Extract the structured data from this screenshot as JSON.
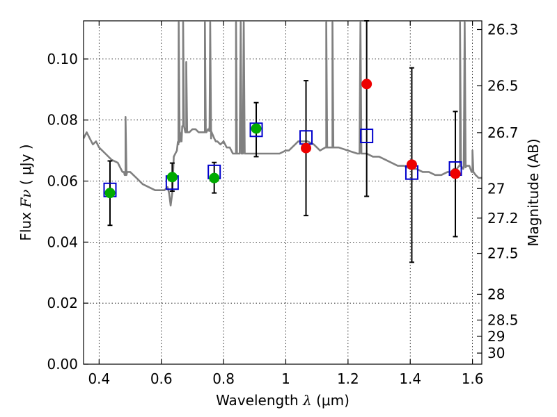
{
  "chart_data": {
    "type": "scatter",
    "xlabel_text": "Wavelength",
    "xlabel_symbol": "λ",
    "xlabel_unit": "(μm)",
    "ylabel_text": "Flux",
    "ylabel_symbol": "Fν",
    "ylabel_unit": "( μJy )",
    "y2label": "Magnitude (AB)",
    "xlim": [
      0.35,
      1.63
    ],
    "ylim": [
      0.0,
      0.1125
    ],
    "xticks": [
      0.4,
      0.6,
      0.8,
      1.0,
      1.2,
      1.4,
      1.6
    ],
    "xtick_labels": [
      "0.4",
      "0.6",
      "0.8",
      "1",
      "1.2",
      "1.4",
      "1.6"
    ],
    "yticks": [
      0.0,
      0.02,
      0.04,
      0.06,
      0.08,
      0.1
    ],
    "ytick_labels": [
      "0.00",
      "0.02",
      "0.04",
      "0.06",
      "0.08",
      "0.10"
    ],
    "y2ticks": [
      26.3,
      26.5,
      26.7,
      27,
      27.2,
      27.5,
      28,
      28.5,
      29,
      30
    ],
    "y2tick_labels": [
      "26.3",
      "26.5",
      "26.7",
      "27",
      "27.2",
      "27.5",
      "28",
      "28.5",
      "29",
      "30"
    ],
    "grid": true,
    "colors": {
      "template": "#808080",
      "model": "#0000cc",
      "detection": "#00aa00",
      "lowsn": "#ee0000",
      "errorbar": "#000000"
    },
    "template_spectrum": {
      "x": [
        0.35,
        0.36,
        0.37,
        0.38,
        0.39,
        0.4,
        0.42,
        0.44,
        0.46,
        0.47,
        0.475,
        0.48,
        0.485,
        0.49,
        0.5,
        0.52,
        0.54,
        0.56,
        0.58,
        0.6,
        0.61,
        0.62,
        0.625,
        0.63,
        0.635,
        0.64,
        0.645,
        0.65,
        0.655,
        0.66,
        0.665,
        0.67,
        0.68,
        0.69,
        0.7,
        0.71,
        0.72,
        0.73,
        0.74,
        0.745,
        0.75,
        0.755,
        0.76,
        0.77,
        0.775,
        0.78,
        0.79,
        0.8,
        0.81,
        0.82,
        0.83,
        0.835,
        0.84,
        0.845,
        0.85,
        0.86,
        0.87,
        0.88,
        0.9,
        0.92,
        0.94,
        0.96,
        0.98,
        1.0,
        1.01,
        1.02,
        1.03,
        1.04,
        1.05,
        1.07,
        1.09,
        1.1,
        1.11,
        1.13,
        1.15,
        1.17,
        1.2,
        1.23,
        1.26,
        1.28,
        1.3,
        1.32,
        1.34,
        1.36,
        1.38,
        1.4,
        1.42,
        1.44,
        1.46,
        1.48,
        1.5,
        1.52,
        1.53,
        1.54,
        1.55,
        1.56,
        1.57,
        1.58,
        1.59,
        1.6,
        1.61,
        1.62,
        1.63
      ],
      "y": [
        0.074,
        0.076,
        0.074,
        0.072,
        0.073,
        0.071,
        0.069,
        0.067,
        0.066,
        0.064,
        0.063,
        0.063,
        0.062,
        0.063,
        0.063,
        0.061,
        0.059,
        0.058,
        0.057,
        0.057,
        0.057,
        0.058,
        0.056,
        0.052,
        0.056,
        0.068,
        0.069,
        0.07,
        0.072,
        0.076,
        0.073,
        0.078,
        0.076,
        0.076,
        0.077,
        0.077,
        0.076,
        0.076,
        0.076,
        0.076,
        0.077,
        0.078,
        0.074,
        0.074,
        0.073,
        0.073,
        0.072,
        0.073,
        0.071,
        0.071,
        0.069,
        0.069,
        0.069,
        0.069,
        0.069,
        0.069,
        0.069,
        0.069,
        0.069,
        0.069,
        0.069,
        0.069,
        0.069,
        0.07,
        0.07,
        0.071,
        0.072,
        0.073,
        0.073,
        0.073,
        0.072,
        0.071,
        0.07,
        0.071,
        0.071,
        0.071,
        0.07,
        0.069,
        0.069,
        0.068,
        0.068,
        0.067,
        0.066,
        0.065,
        0.065,
        0.064,
        0.064,
        0.063,
        0.063,
        0.062,
        0.062,
        0.063,
        0.063,
        0.064,
        0.064,
        0.065,
        0.064,
        0.065,
        0.065,
        0.063,
        0.062,
        0.061,
        0.061
      ]
    },
    "template_emission_lines": [
      {
        "x": 0.485,
        "peak": 0.081
      },
      {
        "x": 0.656,
        "peak": 0.112
      },
      {
        "x": 0.67,
        "peak": 0.112
      },
      {
        "x": 0.68,
        "peak": 0.099
      },
      {
        "x": 0.74,
        "peak": 0.112
      },
      {
        "x": 0.757,
        "peak": 0.112
      },
      {
        "x": 0.84,
        "peak": 0.112
      },
      {
        "x": 0.855,
        "peak": 0.112
      },
      {
        "x": 0.865,
        "peak": 0.112
      },
      {
        "x": 1.13,
        "peak": 0.112
      },
      {
        "x": 1.15,
        "peak": 0.112
      },
      {
        "x": 1.24,
        "peak": 0.112
      },
      {
        "x": 1.56,
        "peak": 0.112
      },
      {
        "x": 1.575,
        "peak": 0.112
      },
      {
        "x": 1.6,
        "peak": 0.07
      }
    ],
    "model_photometry": {
      "x": [
        0.435,
        0.635,
        0.77,
        0.905,
        1.065,
        1.26,
        1.405,
        1.545
      ],
      "y": [
        0.0571,
        0.0595,
        0.063,
        0.0768,
        0.0743,
        0.0748,
        0.0628,
        0.0641
      ]
    },
    "observed_detections": {
      "x": [
        0.435,
        0.635,
        0.77,
        0.905
      ],
      "y": [
        0.0561,
        0.0613,
        0.061,
        0.0772
      ],
      "yerr_low": [
        0.0455,
        0.0567,
        0.0561,
        0.068
      ],
      "yerr_high": [
        0.0666,
        0.0659,
        0.0661,
        0.0857
      ]
    },
    "observed_lowsn": {
      "x": [
        1.065,
        1.26,
        1.405,
        1.545
      ],
      "y": [
        0.0708,
        0.0918,
        0.0654,
        0.0624
      ],
      "yerr_low": [
        0.0487,
        0.055,
        0.0334,
        0.0418
      ],
      "yerr_high": [
        0.0929,
        0.1125,
        0.0971,
        0.0828
      ]
    }
  }
}
